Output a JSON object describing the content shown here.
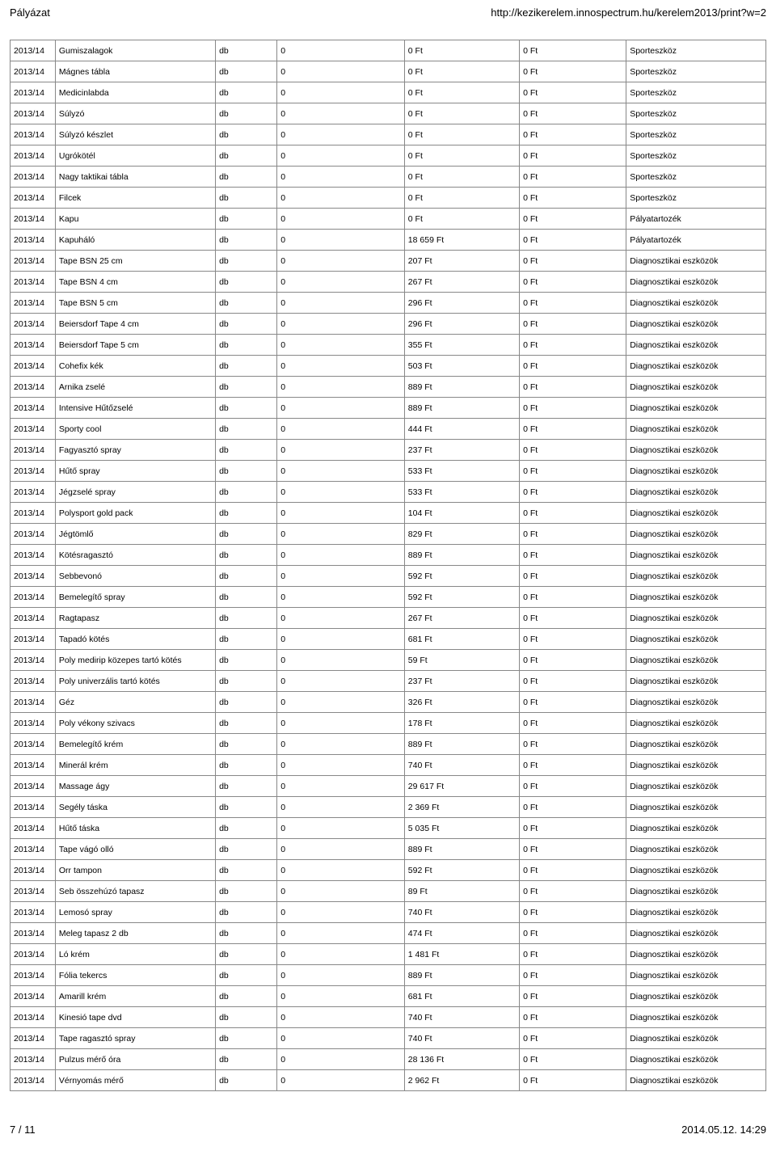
{
  "header": {
    "left": "Pályázat",
    "right": "http://kezikerelem.innospectrum.hu/kerelem2013/print?w=2"
  },
  "footer": {
    "left": "7 / 11",
    "right": "2014.05.12. 14:29"
  },
  "table": {
    "rows": [
      {
        "year": "2013/14",
        "name": "Gumiszalagok",
        "unit": "db",
        "qty": "0",
        "price": "0 Ft",
        "price2": "0  Ft",
        "cat": "Sporteszköz"
      },
      {
        "year": "2013/14",
        "name": "Mágnes tábla",
        "unit": "db",
        "qty": "0",
        "price": "0 Ft",
        "price2": "0  Ft",
        "cat": "Sporteszköz"
      },
      {
        "year": "2013/14",
        "name": "Medicinlabda",
        "unit": "db",
        "qty": "0",
        "price": "0 Ft",
        "price2": "0  Ft",
        "cat": "Sporteszköz"
      },
      {
        "year": "2013/14",
        "name": "Súlyzó",
        "unit": "db",
        "qty": "0",
        "price": "0 Ft",
        "price2": "0  Ft",
        "cat": "Sporteszköz"
      },
      {
        "year": "2013/14",
        "name": "Súlyzó készlet",
        "unit": "db",
        "qty": "0",
        "price": "0 Ft",
        "price2": "0  Ft",
        "cat": "Sporteszköz"
      },
      {
        "year": "2013/14",
        "name": "Ugrókötél",
        "unit": "db",
        "qty": "0",
        "price": "0 Ft",
        "price2": "0  Ft",
        "cat": "Sporteszköz"
      },
      {
        "year": "2013/14",
        "name": "Nagy taktikai tábla",
        "unit": "db",
        "qty": "0",
        "price": "0 Ft",
        "price2": "0  Ft",
        "cat": "Sporteszköz"
      },
      {
        "year": "2013/14",
        "name": "Filcek",
        "unit": "db",
        "qty": "0",
        "price": "0 Ft",
        "price2": "0  Ft",
        "cat": "Sporteszköz"
      },
      {
        "year": "2013/14",
        "name": "Kapu",
        "unit": "db",
        "qty": "0",
        "price": "0 Ft",
        "price2": "0  Ft",
        "cat": "Pályatartozék"
      },
      {
        "year": "2013/14",
        "name": "Kapuháló",
        "unit": "db",
        "qty": "0",
        "price": "18 659 Ft",
        "price2": "0  Ft",
        "cat": "Pályatartozék"
      },
      {
        "year": "2013/14",
        "name": "Tape BSN 25 cm",
        "unit": "db",
        "qty": "0",
        "price": "207 Ft",
        "price2": "0  Ft",
        "cat": "Diagnosztikai eszközök"
      },
      {
        "year": "2013/14",
        "name": "Tape BSN 4 cm",
        "unit": "db",
        "qty": "0",
        "price": "267 Ft",
        "price2": "0  Ft",
        "cat": "Diagnosztikai eszközök"
      },
      {
        "year": "2013/14",
        "name": "Tape BSN 5 cm",
        "unit": "db",
        "qty": "0",
        "price": "296 Ft",
        "price2": "0  Ft",
        "cat": "Diagnosztikai eszközök"
      },
      {
        "year": "2013/14",
        "name": "Beiersdorf Tape 4 cm",
        "unit": "db",
        "qty": "0",
        "price": "296 Ft",
        "price2": "0  Ft",
        "cat": "Diagnosztikai eszközök"
      },
      {
        "year": "2013/14",
        "name": "Beiersdorf Tape 5 cm",
        "unit": "db",
        "qty": "0",
        "price": "355 Ft",
        "price2": "0  Ft",
        "cat": "Diagnosztikai eszközök"
      },
      {
        "year": "2013/14",
        "name": "Cohefix kék",
        "unit": "db",
        "qty": "0",
        "price": "503 Ft",
        "price2": "0  Ft",
        "cat": "Diagnosztikai eszközök"
      },
      {
        "year": "2013/14",
        "name": "Arnika zselé",
        "unit": "db",
        "qty": "0",
        "price": "889 Ft",
        "price2": "0  Ft",
        "cat": "Diagnosztikai eszközök"
      },
      {
        "year": "2013/14",
        "name": "Intensive Hűtőzselé",
        "unit": "db",
        "qty": "0",
        "price": "889 Ft",
        "price2": "0  Ft",
        "cat": "Diagnosztikai eszközök"
      },
      {
        "year": "2013/14",
        "name": "Sporty cool",
        "unit": "db",
        "qty": "0",
        "price": "444 Ft",
        "price2": "0  Ft",
        "cat": "Diagnosztikai eszközök"
      },
      {
        "year": "2013/14",
        "name": "Fagyasztó spray",
        "unit": "db",
        "qty": "0",
        "price": "237 Ft",
        "price2": "0  Ft",
        "cat": "Diagnosztikai eszközök"
      },
      {
        "year": "2013/14",
        "name": "Hűtő spray",
        "unit": "db",
        "qty": "0",
        "price": "533 Ft",
        "price2": "0  Ft",
        "cat": "Diagnosztikai eszközök"
      },
      {
        "year": "2013/14",
        "name": "Jégzselé spray",
        "unit": "db",
        "qty": "0",
        "price": "533 Ft",
        "price2": "0  Ft",
        "cat": "Diagnosztikai eszközök"
      },
      {
        "year": "2013/14",
        "name": "Polysport gold pack",
        "unit": "db",
        "qty": "0",
        "price": "104 Ft",
        "price2": "0  Ft",
        "cat": "Diagnosztikai eszközök"
      },
      {
        "year": "2013/14",
        "name": "Jégtömlő",
        "unit": "db",
        "qty": "0",
        "price": "829 Ft",
        "price2": "0  Ft",
        "cat": "Diagnosztikai eszközök"
      },
      {
        "year": "2013/14",
        "name": "Kötésragasztó",
        "unit": "db",
        "qty": "0",
        "price": "889 Ft",
        "price2": "0  Ft",
        "cat": "Diagnosztikai eszközök"
      },
      {
        "year": "2013/14",
        "name": "Sebbevonó",
        "unit": "db",
        "qty": "0",
        "price": "592 Ft",
        "price2": "0  Ft",
        "cat": "Diagnosztikai eszközök"
      },
      {
        "year": "2013/14",
        "name": "Bemelegítő spray",
        "unit": "db",
        "qty": "0",
        "price": "592 Ft",
        "price2": "0  Ft",
        "cat": "Diagnosztikai eszközök"
      },
      {
        "year": "2013/14",
        "name": "Ragtapasz",
        "unit": "db",
        "qty": "0",
        "price": "267 Ft",
        "price2": "0  Ft",
        "cat": "Diagnosztikai eszközök"
      },
      {
        "year": "2013/14",
        "name": "Tapadó kötés",
        "unit": "db",
        "qty": "0",
        "price": "681 Ft",
        "price2": "0  Ft",
        "cat": "Diagnosztikai eszközök"
      },
      {
        "year": "2013/14",
        "name": "Poly medirip közepes tartó kötés",
        "unit": "db",
        "qty": "0",
        "price": "59 Ft",
        "price2": "0  Ft",
        "cat": "Diagnosztikai eszközök"
      },
      {
        "year": "2013/14",
        "name": "Poly univerzális tartó kötés",
        "unit": "db",
        "qty": "0",
        "price": "237 Ft",
        "price2": "0  Ft",
        "cat": "Diagnosztikai eszközök"
      },
      {
        "year": "2013/14",
        "name": "Géz",
        "unit": "db",
        "qty": "0",
        "price": "326 Ft",
        "price2": "0  Ft",
        "cat": "Diagnosztikai eszközök"
      },
      {
        "year": "2013/14",
        "name": "Poly vékony szivacs",
        "unit": "db",
        "qty": "0",
        "price": "178 Ft",
        "price2": "0  Ft",
        "cat": "Diagnosztikai eszközök"
      },
      {
        "year": "2013/14",
        "name": "Bemelegítő krém",
        "unit": "db",
        "qty": "0",
        "price": "889 Ft",
        "price2": "0  Ft",
        "cat": "Diagnosztikai eszközök"
      },
      {
        "year": "2013/14",
        "name": "Minerál krém",
        "unit": "db",
        "qty": "0",
        "price": "740 Ft",
        "price2": "0  Ft",
        "cat": "Diagnosztikai eszközök"
      },
      {
        "year": "2013/14",
        "name": "Massage ágy",
        "unit": "db",
        "qty": "0",
        "price": "29 617 Ft",
        "price2": "0  Ft",
        "cat": "Diagnosztikai eszközök"
      },
      {
        "year": "2013/14",
        "name": "Segély táska",
        "unit": "db",
        "qty": "0",
        "price": "2 369 Ft",
        "price2": "0  Ft",
        "cat": "Diagnosztikai eszközök"
      },
      {
        "year": "2013/14",
        "name": "Hűtő táska",
        "unit": "db",
        "qty": "0",
        "price": "5 035 Ft",
        "price2": "0  Ft",
        "cat": "Diagnosztikai eszközök"
      },
      {
        "year": "2013/14",
        "name": "Tape vágó olló",
        "unit": "db",
        "qty": "0",
        "price": "889 Ft",
        "price2": "0  Ft",
        "cat": "Diagnosztikai eszközök"
      },
      {
        "year": "2013/14",
        "name": "Orr tampon",
        "unit": "db",
        "qty": "0",
        "price": "592 Ft",
        "price2": "0  Ft",
        "cat": "Diagnosztikai eszközök"
      },
      {
        "year": "2013/14",
        "name": "Seb összehúzó tapasz",
        "unit": "db",
        "qty": "0",
        "price": "89 Ft",
        "price2": "0  Ft",
        "cat": "Diagnosztikai eszközök"
      },
      {
        "year": "2013/14",
        "name": "Lemosó spray",
        "unit": "db",
        "qty": "0",
        "price": "740 Ft",
        "price2": "0  Ft",
        "cat": "Diagnosztikai eszközök"
      },
      {
        "year": "2013/14",
        "name": "Meleg tapasz 2 db",
        "unit": "db",
        "qty": "0",
        "price": "474 Ft",
        "price2": "0  Ft",
        "cat": "Diagnosztikai eszközök"
      },
      {
        "year": "2013/14",
        "name": "Ló krém",
        "unit": "db",
        "qty": "0",
        "price": "1 481 Ft",
        "price2": "0  Ft",
        "cat": "Diagnosztikai eszközök"
      },
      {
        "year": "2013/14",
        "name": "Fólia tekercs",
        "unit": "db",
        "qty": "0",
        "price": "889 Ft",
        "price2": "0  Ft",
        "cat": "Diagnosztikai eszközök"
      },
      {
        "year": "2013/14",
        "name": "Amarill krém",
        "unit": "db",
        "qty": "0",
        "price": "681 Ft",
        "price2": "0  Ft",
        "cat": "Diagnosztikai eszközök"
      },
      {
        "year": "2013/14",
        "name": "Kinesió tape dvd",
        "unit": "db",
        "qty": "0",
        "price": "740 Ft",
        "price2": "0  Ft",
        "cat": "Diagnosztikai eszközök"
      },
      {
        "year": "2013/14",
        "name": "Tape ragasztó spray",
        "unit": "db",
        "qty": "0",
        "price": "740 Ft",
        "price2": "0  Ft",
        "cat": "Diagnosztikai eszközök"
      },
      {
        "year": "2013/14",
        "name": "Pulzus mérő óra",
        "unit": "db",
        "qty": "0",
        "price": "28 136 Ft",
        "price2": "0  Ft",
        "cat": "Diagnosztikai eszközök"
      },
      {
        "year": "2013/14",
        "name": "Vérnyomás mérő",
        "unit": "db",
        "qty": "0",
        "price": "2 962 Ft",
        "price2": "0  Ft",
        "cat": "Diagnosztikai eszközök"
      }
    ]
  }
}
